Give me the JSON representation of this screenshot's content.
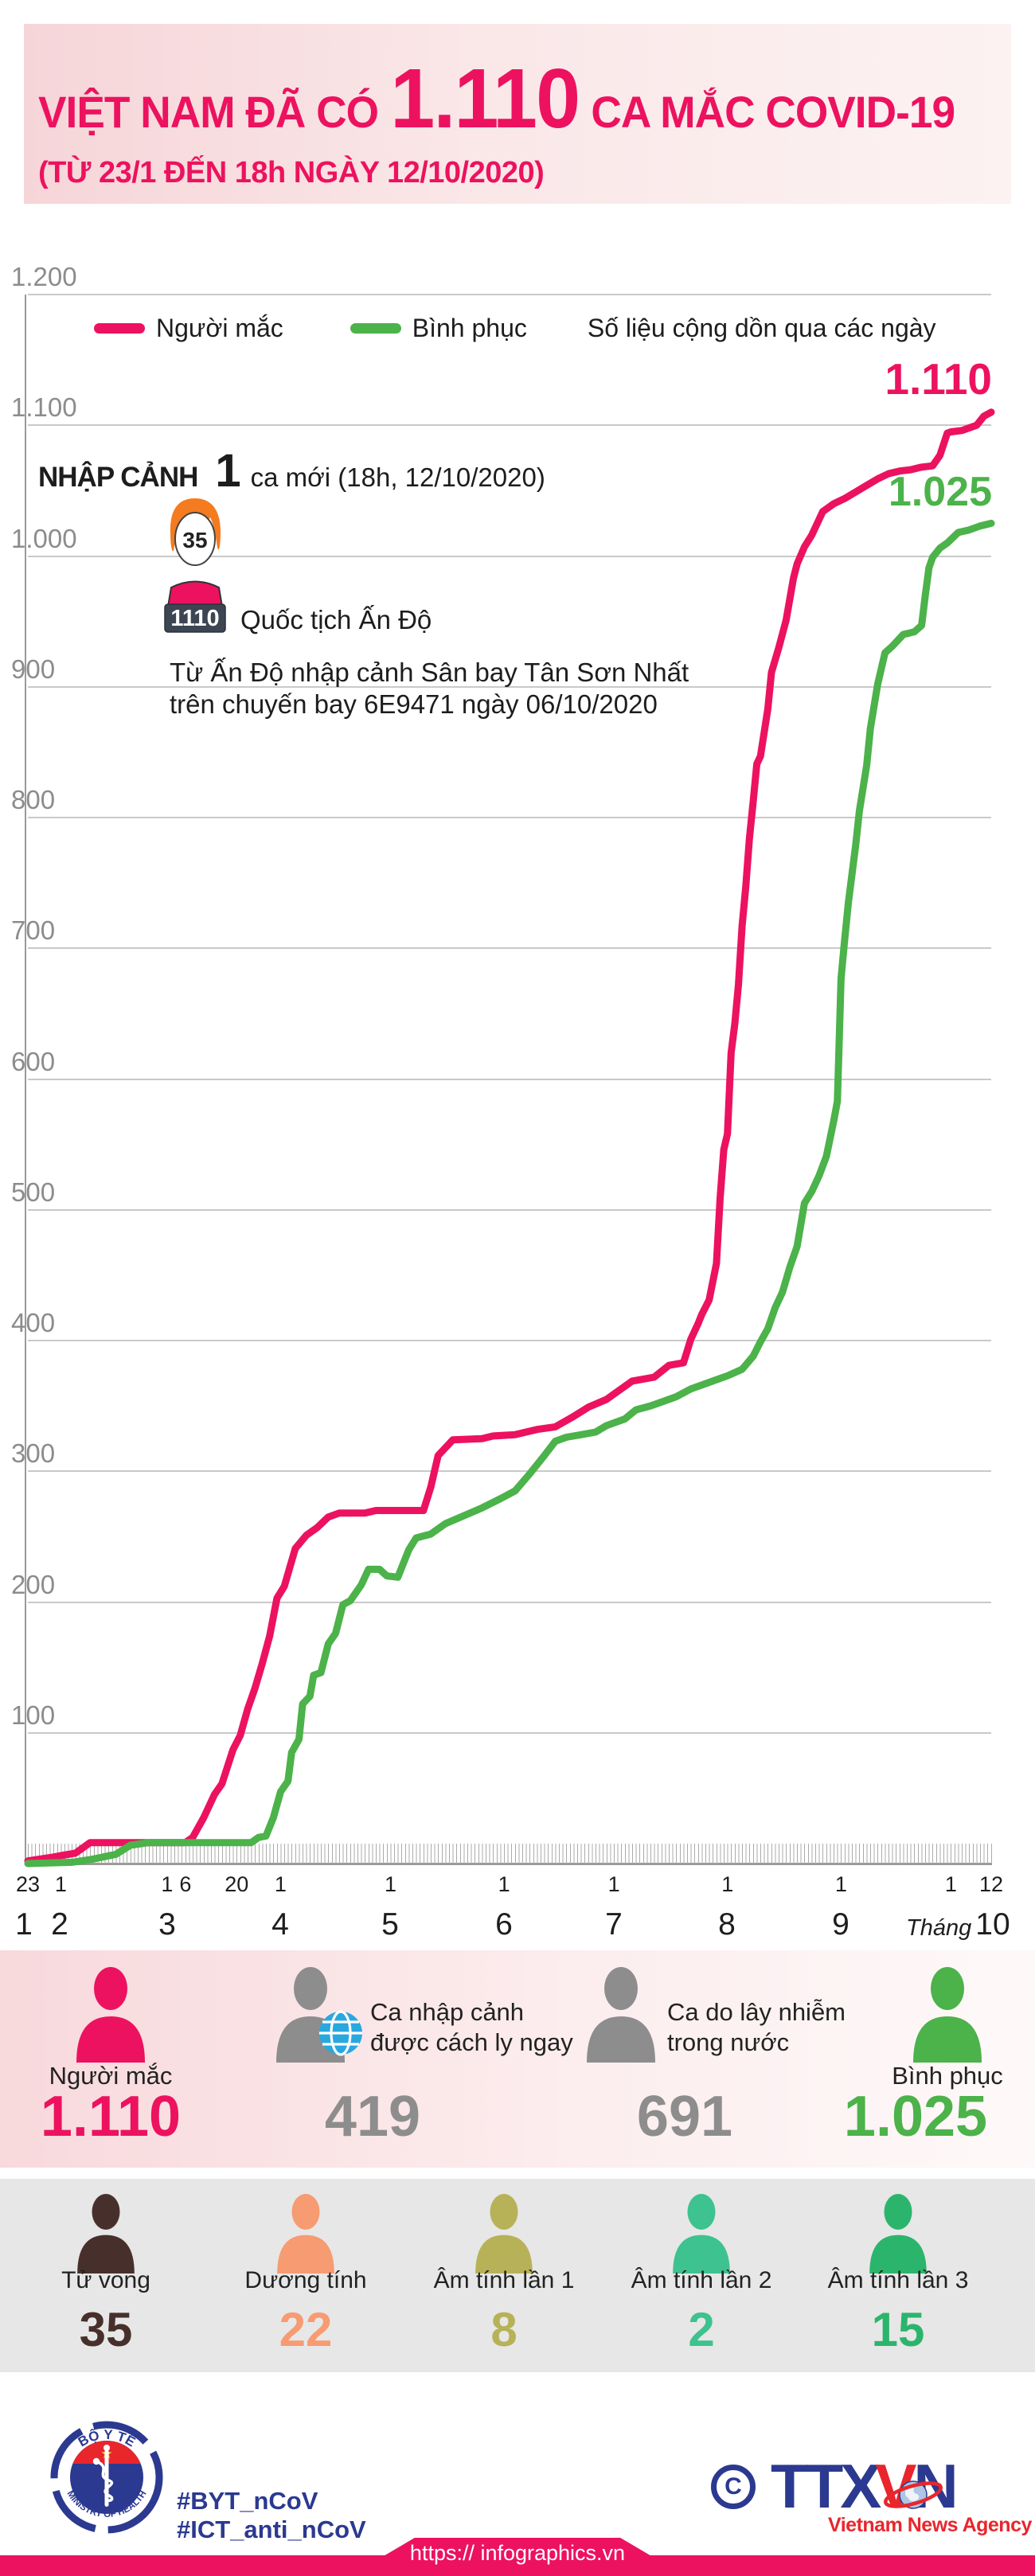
{
  "header": {
    "title_prefix": "VIỆT NAM ĐÃ CÓ",
    "title_number": "1.110",
    "title_suffix": "CA MẮC COVID-19",
    "subtitle": "(TỪ 23/1 ĐẾN 18h NGÀY 12/10/2020)"
  },
  "legend": {
    "series1": "Người mắc",
    "series2": "Bình phục",
    "note": "Số liệu cộng dồn qua các ngày"
  },
  "annotation": {
    "heading": "NHẬP CẢNH",
    "new_count": "1",
    "new_text": "ca mới (18h, 12/10/2020)",
    "age": "35",
    "case_id": "1110",
    "nationality": "Quốc tịch Ấn Độ",
    "detail_line1": "Từ Ấn Độ nhập cảnh Sân bay Tân Sơn Nhất",
    "detail_line2": "trên chuyến bay 6E9471 ngày 06/10/2020"
  },
  "chart_data": {
    "type": "line",
    "title": "Số liệu cộng dồn qua các ngày",
    "ylim": [
      0,
      1200
    ],
    "grid": true,
    "legend_position": "top-left",
    "y_ticks": [
      "1.200",
      "1.100",
      "1.000",
      "900",
      "800",
      "700",
      "600",
      "500",
      "400",
      "300",
      "200",
      "100"
    ],
    "x_day_ticks": [
      {
        "label": "23",
        "day": 0
      },
      {
        "label": "1",
        "day": 9
      },
      {
        "label": "1",
        "day": 38
      },
      {
        "label": "6",
        "day": 43
      },
      {
        "label": "20",
        "day": 57
      },
      {
        "label": "1",
        "day": 69
      },
      {
        "label": "1",
        "day": 99
      },
      {
        "label": "1",
        "day": 130
      },
      {
        "label": "1",
        "day": 160
      },
      {
        "label": "1",
        "day": 191
      },
      {
        "label": "1",
        "day": 222
      },
      {
        "label": "1",
        "day": 252
      },
      {
        "label": "12",
        "day": 263
      }
    ],
    "month_labels": [
      "1",
      "2",
      "3",
      "4",
      "5",
      "6",
      "7",
      "8",
      "9",
      "10"
    ],
    "month_axis_label": "Tháng",
    "series": [
      {
        "name": "Người mắc",
        "color": "#EC125F",
        "end_label": "1.110",
        "final_value": 1110,
        "points": [
          [
            0,
            2
          ],
          [
            7,
            5
          ],
          [
            9,
            6
          ],
          [
            13,
            8
          ],
          [
            17,
            16
          ],
          [
            21,
            16
          ],
          [
            43,
            16
          ],
          [
            45,
            20
          ],
          [
            48,
            35
          ],
          [
            51,
            53
          ],
          [
            53,
            61
          ],
          [
            56,
            87
          ],
          [
            58,
            98
          ],
          [
            60,
            118
          ],
          [
            62,
            134
          ],
          [
            64,
            153
          ],
          [
            66,
            174
          ],
          [
            68,
            203
          ],
          [
            70,
            212
          ],
          [
            73,
            241
          ],
          [
            76,
            251
          ],
          [
            79,
            257
          ],
          [
            82,
            265
          ],
          [
            85,
            268
          ],
          [
            92,
            268
          ],
          [
            95,
            270
          ],
          [
            108,
            270
          ],
          [
            110,
            288
          ],
          [
            112,
            312
          ],
          [
            114,
            318
          ],
          [
            116,
            324
          ],
          [
            124,
            325
          ],
          [
            127,
            327
          ],
          [
            133,
            328
          ],
          [
            139,
            332
          ],
          [
            144,
            334
          ],
          [
            149,
            342
          ],
          [
            153,
            349
          ],
          [
            158,
            355
          ],
          [
            165,
            369
          ],
          [
            171,
            372
          ],
          [
            175,
            381
          ],
          [
            179,
            383
          ],
          [
            181,
            401
          ],
          [
            183,
            413
          ],
          [
            184,
            420
          ],
          [
            186,
            431
          ],
          [
            188,
            459
          ],
          [
            189,
            509
          ],
          [
            190,
            546
          ],
          [
            191,
            558
          ],
          [
            192,
            620
          ],
          [
            193,
            642
          ],
          [
            194,
            672
          ],
          [
            195,
            717
          ],
          [
            196,
            747
          ],
          [
            197,
            784
          ],
          [
            198,
            812
          ],
          [
            199,
            841
          ],
          [
            200,
            847
          ],
          [
            202,
            883
          ],
          [
            203,
            911
          ],
          [
            205,
            930
          ],
          [
            207,
            951
          ],
          [
            209,
            983
          ],
          [
            210,
            994
          ],
          [
            212,
            1007
          ],
          [
            214,
            1016
          ],
          [
            215,
            1022
          ],
          [
            217,
            1034
          ],
          [
            220,
            1040
          ],
          [
            223,
            1044
          ],
          [
            226,
            1049
          ],
          [
            229,
            1054
          ],
          [
            232,
            1059
          ],
          [
            235,
            1063
          ],
          [
            238,
            1065
          ],
          [
            241,
            1066
          ],
          [
            244,
            1068
          ],
          [
            247,
            1069
          ],
          [
            249,
            1077
          ],
          [
            251,
            1094
          ],
          [
            252,
            1095
          ],
          [
            255,
            1096
          ],
          [
            257,
            1098
          ],
          [
            259,
            1100
          ],
          [
            261,
            1107
          ],
          [
            263,
            1110
          ]
        ]
      },
      {
        "name": "Bình phục",
        "color": "#4CB24A",
        "end_label": "1.025",
        "final_value": 1025,
        "points": [
          [
            0,
            0
          ],
          [
            12,
            1
          ],
          [
            17,
            3
          ],
          [
            24,
            7
          ],
          [
            28,
            14
          ],
          [
            33,
            16
          ],
          [
            61,
            16
          ],
          [
            63,
            20
          ],
          [
            65,
            21
          ],
          [
            67,
            35
          ],
          [
            69,
            55
          ],
          [
            71,
            63
          ],
          [
            72,
            85
          ],
          [
            74,
            95
          ],
          [
            75,
            122
          ],
          [
            77,
            128
          ],
          [
            78,
            144
          ],
          [
            80,
            146
          ],
          [
            82,
            168
          ],
          [
            84,
            176
          ],
          [
            86,
            198
          ],
          [
            88,
            201
          ],
          [
            91,
            213
          ],
          [
            93,
            225
          ],
          [
            96,
            225
          ],
          [
            98,
            220
          ],
          [
            101,
            219
          ],
          [
            104,
            240
          ],
          [
            106,
            249
          ],
          [
            110,
            252
          ],
          [
            114,
            260
          ],
          [
            119,
            266
          ],
          [
            124,
            272
          ],
          [
            129,
            279
          ],
          [
            133,
            285
          ],
          [
            137,
            298
          ],
          [
            141,
            312
          ],
          [
            144,
            323
          ],
          [
            147,
            326
          ],
          [
            151,
            328
          ],
          [
            155,
            330
          ],
          [
            158,
            335
          ],
          [
            163,
            340
          ],
          [
            166,
            347
          ],
          [
            170,
            350
          ],
          [
            173,
            353
          ],
          [
            177,
            357
          ],
          [
            181,
            363
          ],
          [
            183,
            365
          ],
          [
            187,
            369
          ],
          [
            191,
            373
          ],
          [
            195,
            378
          ],
          [
            198,
            388
          ],
          [
            200,
            399
          ],
          [
            202,
            409
          ],
          [
            204,
            425
          ],
          [
            206,
            437
          ],
          [
            208,
            456
          ],
          [
            210,
            472
          ],
          [
            212,
            505
          ],
          [
            214,
            514
          ],
          [
            216,
            526
          ],
          [
            218,
            541
          ],
          [
            220,
            568
          ],
          [
            221,
            583
          ],
          [
            222,
            677
          ],
          [
            223,
            707
          ],
          [
            224,
            735
          ],
          [
            226,
            779
          ],
          [
            227,
            805
          ],
          [
            229,
            840
          ],
          [
            230,
            868
          ],
          [
            232,
            902
          ],
          [
            234,
            926
          ],
          [
            236,
            931
          ],
          [
            239,
            940
          ],
          [
            242,
            942
          ],
          [
            244,
            947
          ],
          [
            245,
            970
          ],
          [
            246,
            991
          ],
          [
            247,
            999
          ],
          [
            249,
            1006
          ],
          [
            251,
            1010
          ],
          [
            254,
            1018
          ],
          [
            257,
            1020
          ],
          [
            260,
            1023
          ],
          [
            263,
            1025
          ]
        ]
      }
    ]
  },
  "stats_primary": [
    {
      "label": "Người mắc",
      "value": "1.110",
      "color": "#EC125F"
    },
    {
      "label_lines": [
        "Ca nhập cảnh",
        "được cách ly ngay"
      ],
      "value": "419",
      "color": "#8D8D8D"
    },
    {
      "label_lines": [
        "Ca do lây nhiễm",
        "trong nước"
      ],
      "value": "691",
      "color": "#8D8D8D"
    },
    {
      "label": "Bình phục",
      "value": "1.025",
      "color": "#4CB24A"
    }
  ],
  "stats_secondary": [
    {
      "label": "Tử vong",
      "value": "35",
      "color": "#47302B"
    },
    {
      "label": "Dương tính",
      "value": "22",
      "color": "#F79B72"
    },
    {
      "label": "Âm tính lần 1",
      "value": "8",
      "color": "#B7B257"
    },
    {
      "label": "Âm tính lần 2",
      "value": "2",
      "color": "#3EC28F"
    },
    {
      "label": "Âm tính lần 3",
      "value": "15",
      "color": "#2BB56C"
    }
  ],
  "footer": {
    "moh_arc_top": "BỘ Y TẾ",
    "moh_arc_bottom": "MINISTRY OF HEALTH",
    "hashtag1": "#BYT_nCoV",
    "hashtag2": "#ICT_anti_nCoV",
    "copyright": "C",
    "agency_part1": "TTX",
    "agency_part2": "V",
    "agency_part3": "N",
    "agency_sub": "Vietnam News Agency",
    "url": "https:// infographics.vn"
  },
  "colors": {
    "accent_pink": "#EC125F",
    "accent_green": "#4CB24A",
    "stat_gray": "#8D8D8D",
    "globe_blue": "#29A8DF",
    "agency_blue": "#2B3990",
    "agency_red": "#E8262C"
  }
}
